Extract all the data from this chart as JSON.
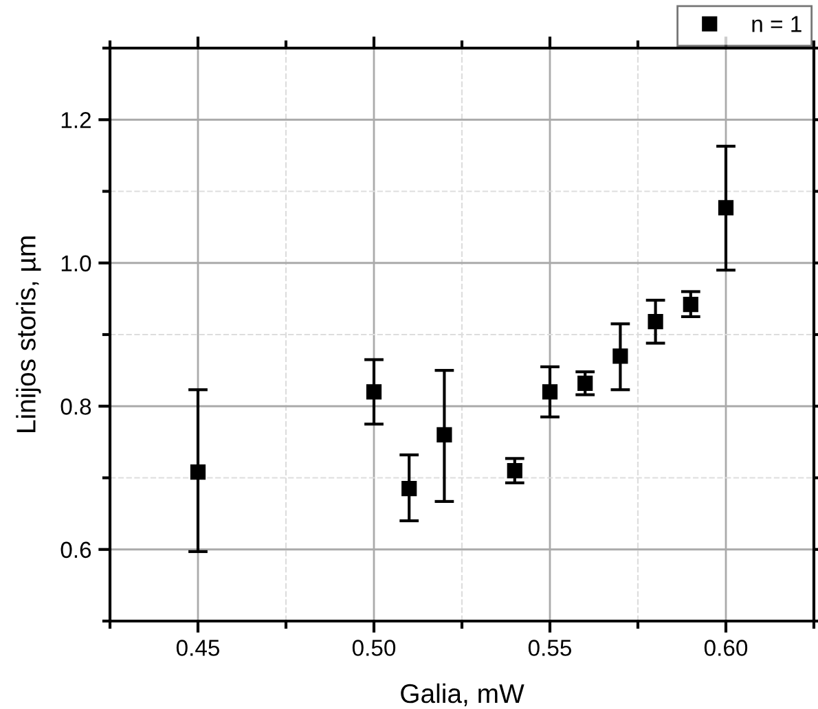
{
  "chart_data": {
    "type": "scatter",
    "xlabel": "Galia, mW",
    "ylabel": "Linijos storis, µm",
    "x": [
      0.45,
      0.5,
      0.51,
      0.52,
      0.54,
      0.55,
      0.56,
      0.57,
      0.58,
      0.59,
      0.6
    ],
    "series": [
      {
        "name": "n = 1",
        "color": "#000000",
        "values": [
          0.708,
          0.82,
          0.685,
          0.76,
          0.71,
          0.82,
          0.832,
          0.87,
          0.918,
          0.942,
          1.077
        ],
        "errors": [
          [
            0.597,
            0.823
          ],
          [
            0.775,
            0.865
          ],
          [
            0.64,
            0.732
          ],
          [
            0.667,
            0.85
          ],
          [
            0.693,
            0.727
          ],
          [
            0.785,
            0.855
          ],
          [
            0.816,
            0.848
          ],
          [
            0.823,
            0.915
          ],
          [
            0.888,
            0.948
          ],
          [
            0.925,
            0.96
          ],
          [
            0.99,
            1.163
          ]
        ]
      }
    ],
    "xlim": [
      0.425,
      0.625
    ],
    "ylim": [
      0.5,
      1.3
    ],
    "xticks": [
      0.45,
      {
        "value": 0.5,
        "label": "0.50"
      },
      0.55,
      {
        "value": 0.6,
        "label": "0.60"
      }
    ],
    "yticks": [
      0.6,
      0.8,
      {
        "value": 1.0,
        "label": "1.0"
      },
      1.2
    ],
    "grid": true,
    "legend": "top right",
    "marker": "square"
  }
}
